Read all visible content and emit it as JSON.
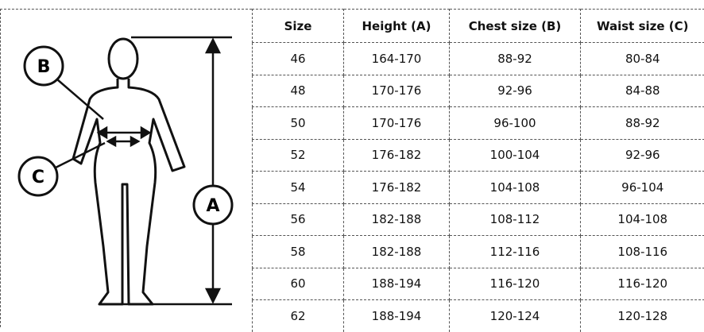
{
  "figure": {
    "labels": [
      "B",
      "C",
      "A"
    ]
  },
  "table": {
    "columns": [
      "Size",
      "Height (A)",
      "Chest size (B)",
      "Waist size (C)"
    ],
    "rows": [
      [
        "46",
        "164-170",
        "88-92",
        "80-84"
      ],
      [
        "48",
        "170-176",
        "92-96",
        "84-88"
      ],
      [
        "50",
        "170-176",
        "96-100",
        "88-92"
      ],
      [
        "52",
        "176-182",
        "100-104",
        "92-96"
      ],
      [
        "54",
        "176-182",
        "104-108",
        "96-104"
      ],
      [
        "56",
        "182-188",
        "108-112",
        "104-108"
      ],
      [
        "58",
        "182-188",
        "112-116",
        "108-116"
      ],
      [
        "60",
        "188-194",
        "116-120",
        "116-120"
      ],
      [
        "62",
        "188-194",
        "120-124",
        "120-128"
      ]
    ]
  }
}
